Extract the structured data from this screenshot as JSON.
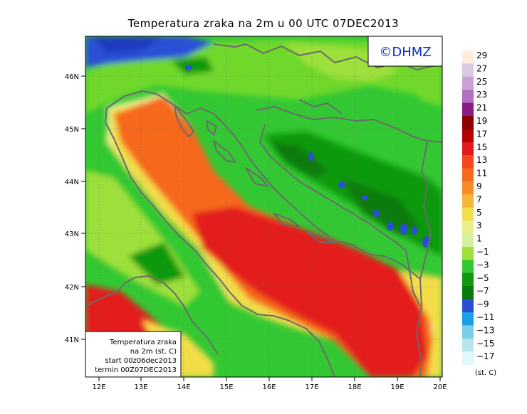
{
  "title": "Temperatura zraka na 2m u 00 UTC 07DEC2013",
  "logo": "©DHMZ",
  "info_box": {
    "line1": "Temperatura zraka",
    "line2": "na 2m (st. C)",
    "line3": "start 00z06dec2013",
    "line4": "termin 00Z07DEC2013"
  },
  "axes": {
    "lat_labels": [
      "46N",
      "45N",
      "44N",
      "43N",
      "42N",
      "41N"
    ],
    "lon_labels": [
      "12E",
      "13E",
      "14E",
      "15E",
      "16E",
      "17E",
      "18E",
      "19E",
      "20E"
    ]
  },
  "legend": {
    "unit": "(st. C)",
    "labels": [
      "29",
      "27",
      "25",
      "23",
      "21",
      "19",
      "17",
      "15",
      "13",
      "11",
      "9",
      "7",
      "5",
      "3",
      "1",
      "−1",
      "−3",
      "−5",
      "−7",
      "−9",
      "−11",
      "−13",
      "−15",
      "−17"
    ],
    "colors": [
      "#fdeee0",
      "#dcc8e0",
      "#c9a3d6",
      "#b070c0",
      "#8a1c86",
      "#8c0000",
      "#b40000",
      "#e31a1c",
      "#f6461e",
      "#f66a1e",
      "#f58c26",
      "#f4b73a",
      "#f2dd4a",
      "#e8f08c",
      "#d4f0a0",
      "#9ee03a",
      "#33c833",
      "#119911",
      "#0a7a0a",
      "#2a4fd6",
      "#1aa0e8",
      "#7ccde8",
      "#b8e4ee",
      "#e0f7fb"
    ]
  }
}
